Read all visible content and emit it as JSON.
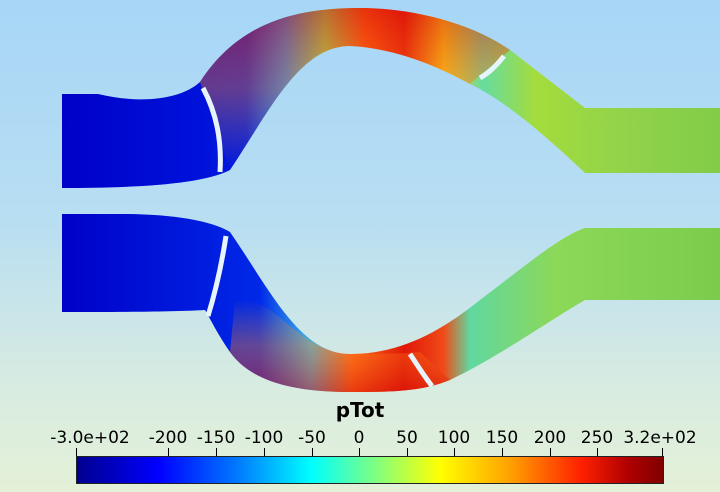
{
  "field_name": "pTot",
  "colorbar": {
    "title": "pTot",
    "ticks": [
      "-3.0e+02",
      "-200",
      "-150",
      "-100",
      "-50",
      "0",
      "50",
      "100",
      "150",
      "200",
      "250",
      "3.2e+02"
    ],
    "colors": [
      "#00008f",
      "#0000ff",
      "#0080ff",
      "#00ffff",
      "#80ff80",
      "#ffff00",
      "#ffa000",
      "#ff2000",
      "#b00000",
      "#800000"
    ]
  }
}
